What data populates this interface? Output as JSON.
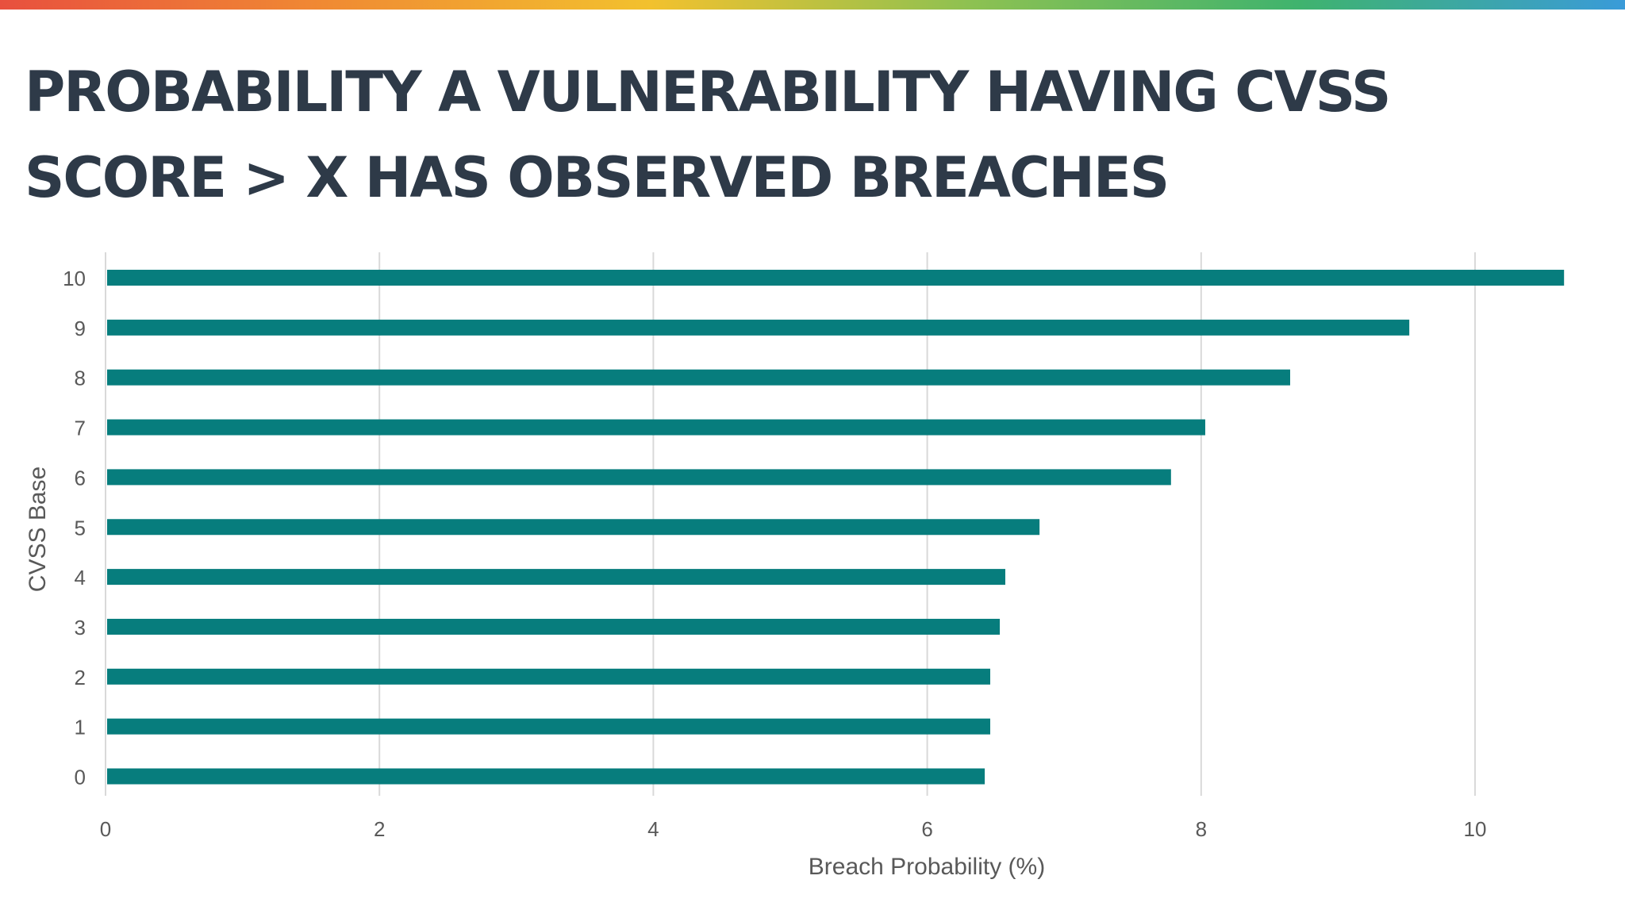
{
  "slide": {
    "title": "PROBABILITY A VULNERABILITY HAVING CVSS SCORE > X HAS OBSERVED BREACHES",
    "accent_gradient": [
      "#e8503e",
      "#f08a33",
      "#f2c12e",
      "#8cc152",
      "#3fb36e",
      "#3a9bd9"
    ]
  },
  "chart_data": {
    "type": "bar",
    "orientation": "horizontal",
    "title": "PROBABILITY A VULNERABILITY HAVING CVSS SCORE > X HAS OBSERVED BREACHES",
    "xlabel": "Breach Probability (%)",
    "ylabel": "CVSS Base",
    "categories": [
      "0",
      "1",
      "2",
      "3",
      "4",
      "5",
      "6",
      "7",
      "8",
      "9",
      "10"
    ],
    "values": [
      6.42,
      6.46,
      6.46,
      6.53,
      6.57,
      6.82,
      7.78,
      8.03,
      8.65,
      9.52,
      10.65
    ],
    "xlim": [
      0,
      11
    ],
    "xticks": [
      "0",
      "2",
      "4",
      "6",
      "8",
      "10"
    ],
    "grid": "vertical",
    "legend": "none",
    "bar_color": "#077d7d",
    "grid_color": "#d9d9d9"
  }
}
